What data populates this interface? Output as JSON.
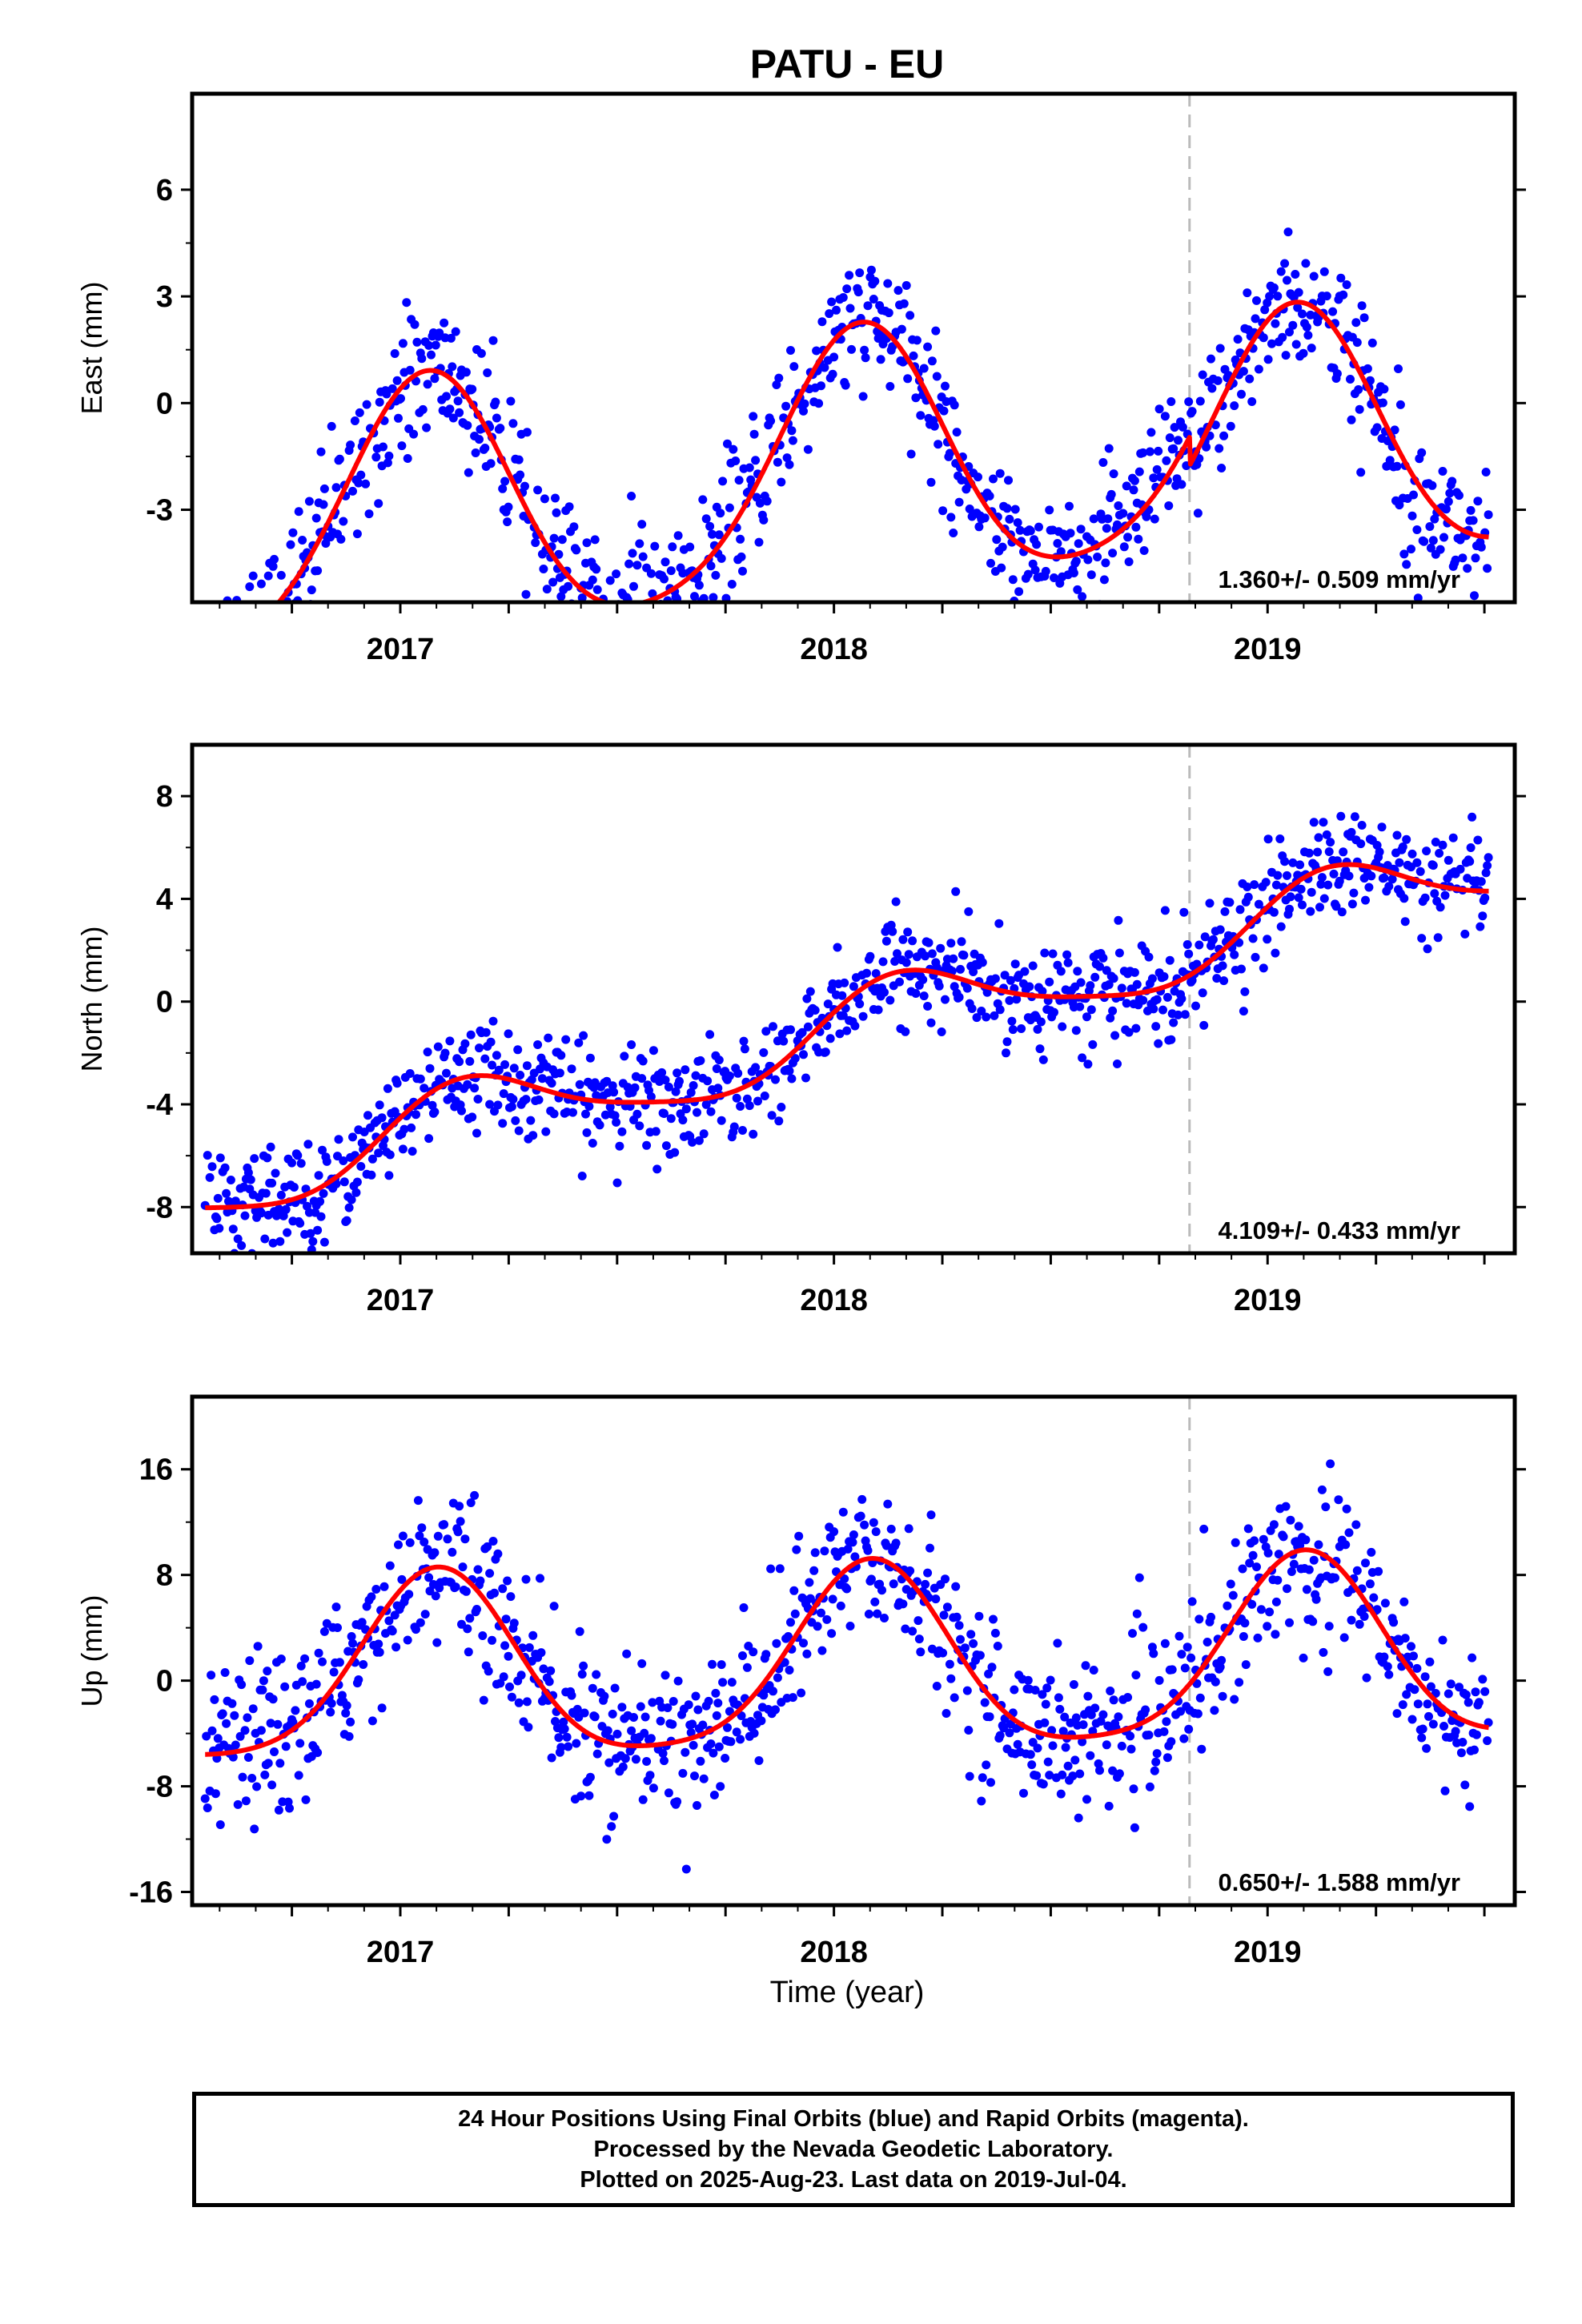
{
  "chart_data": [
    {
      "type": "scatter",
      "title": "PATU - EU",
      "xlabel": "",
      "ylabel": "East (mm)",
      "xlim": [
        2016.52,
        2019.57
      ],
      "ylim": [
        -5.6,
        8.7
      ],
      "yticks": [
        -3,
        0,
        3,
        6
      ],
      "ytick_labels": [
        "-3",
        "0",
        "3",
        "6"
      ],
      "xticks": [
        2017,
        2018,
        2019
      ],
      "xtick_labels": [
        "2017",
        "2018",
        "2019"
      ],
      "grid": false,
      "break_line_x": 2018.82,
      "velocity_label": "1.360+/- 0.509 mm/yr",
      "velocity": 1.36,
      "fit": {
        "offset": -1.9,
        "trend": 1.36,
        "a1": 3.6,
        "phi1": 1.22,
        "a2": 0.5,
        "phi2": 0.6,
        "step": -0.8
      },
      "scatter_sd": 0.95,
      "colors": {
        "points": "#0000ff",
        "fit": "#ff0000",
        "break": "#bbbbbb"
      }
    },
    {
      "type": "scatter",
      "title": "",
      "xlabel": "",
      "ylabel": "North (mm)",
      "xlim": [
        2016.52,
        2019.57
      ],
      "ylim": [
        -9.8,
        10.0
      ],
      "yticks": [
        -8,
        -4,
        0,
        4,
        8
      ],
      "ytick_labels": [
        "-8",
        "-4",
        "0",
        "4",
        "8"
      ],
      "xticks": [
        2017,
        2018,
        2019
      ],
      "xtick_labels": [
        "2017",
        "2018",
        "2019"
      ],
      "grid": false,
      "break_line_x": 2018.82,
      "velocity_label": "4.109+/- 0.433 mm/yr",
      "velocity": 4.109,
      "fit": {
        "offset": -1.2,
        "trend": 4.109,
        "a1": 1.5,
        "phi1": 0.5,
        "a2": 0.3,
        "phi2": 0.2,
        "step": 0
      },
      "scatter_sd": 1.0,
      "colors": {
        "points": "#0000ff",
        "fit": "#ff0000",
        "break": "#bbbbbb"
      }
    },
    {
      "type": "scatter",
      "title": "",
      "xlabel": "Time (year)",
      "ylabel": "Up (mm)",
      "xlim": [
        2016.52,
        2019.57
      ],
      "ylim": [
        -17,
        21.5
      ],
      "yticks": [
        -16,
        -8,
        0,
        8,
        16
      ],
      "ytick_labels": [
        "-16",
        "-8",
        "0",
        "8",
        "16"
      ],
      "xticks": [
        2017,
        2018,
        2019
      ],
      "xtick_labels": [
        "2017",
        "2018",
        "2019"
      ],
      "grid": false,
      "break_line_x": 2018.82,
      "velocity_label": "0.650+/- 1.588 mm/yr",
      "velocity": 0.65,
      "fit": {
        "offset": 1.0,
        "trend": 0.65,
        "a1": 6.9,
        "phi1": 1.05,
        "a2": 1.3,
        "phi2": 0.4,
        "step": 0
      },
      "scatter_sd": 2.9,
      "colors": {
        "points": "#0000ff",
        "fit": "#ff0000",
        "break": "#bbbbbb"
      }
    }
  ],
  "footer": {
    "line1": "24 Hour Positions Using Final Orbits (blue) and Rapid Orbits (magenta).",
    "line2": "Processed by the Nevada Geodetic Laboratory.",
    "line3": "Plotted on 2025-Aug-23. Last data on 2019-Jul-04."
  }
}
